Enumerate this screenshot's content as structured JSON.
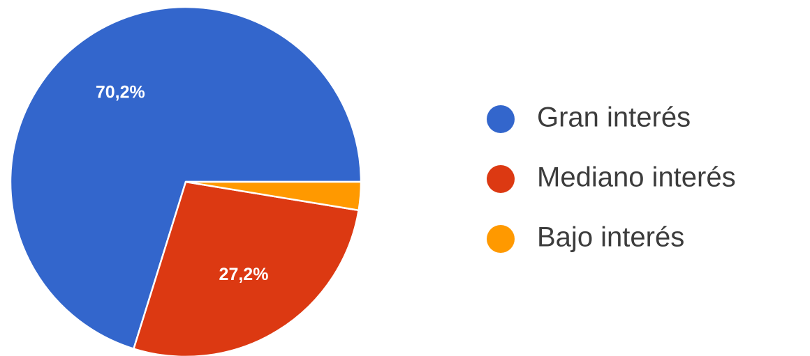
{
  "chart_data": {
    "type": "pie",
    "title": "",
    "slices": [
      {
        "label": "Gran interés",
        "value": 70.2,
        "value_label": "70,2%",
        "show_value_label": true,
        "color": "#3366cc"
      },
      {
        "label": "Mediano interés",
        "value": 27.2,
        "value_label": "27,2%",
        "show_value_label": true,
        "color": "#dc3912"
      },
      {
        "label": "Bajo interés",
        "value": 2.6,
        "value_label": "2,6%",
        "show_value_label": false,
        "color": "#ff9900"
      }
    ],
    "start_direction": "east",
    "direction": "counterclockwise",
    "legend_position": "right"
  }
}
